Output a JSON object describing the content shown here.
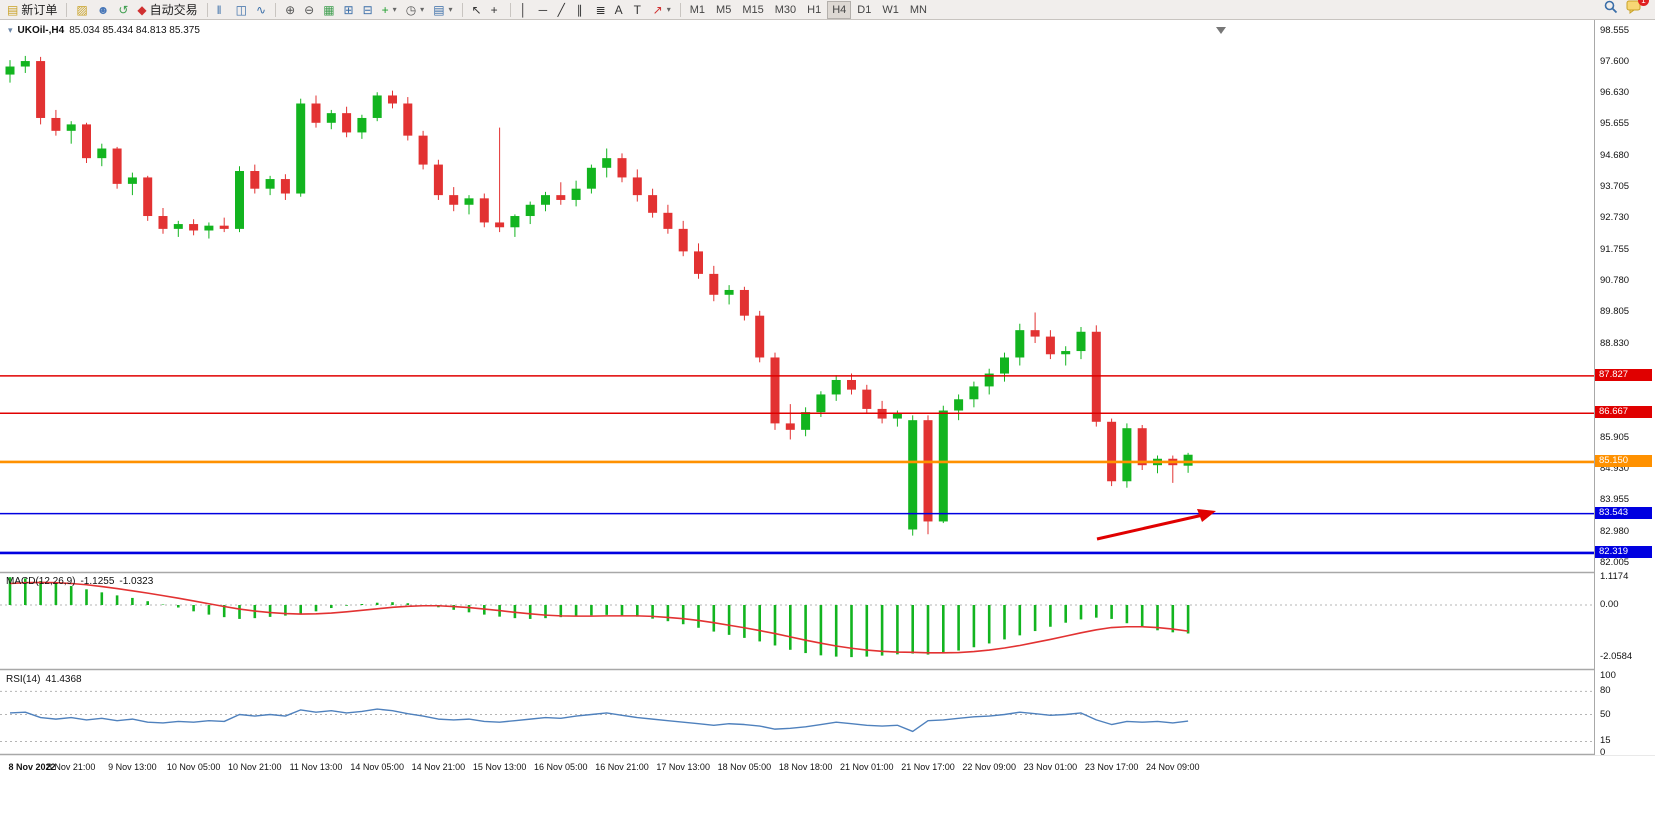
{
  "toolbar": {
    "items": [
      {
        "type": "button",
        "name": "new-order-button",
        "glyph": "▤",
        "glyph_color": "#c9a227",
        "label": "新订单"
      },
      {
        "type": "sep"
      },
      {
        "type": "button",
        "name": "layers-icon-button",
        "glyph": "▨",
        "glyph_color": "#c9a227"
      },
      {
        "type": "button",
        "name": "profile-icon-button",
        "glyph": "☻",
        "glyph_color": "#4a78b8"
      },
      {
        "type": "button",
        "name": "sync-icon-button",
        "glyph": "↺",
        "glyph_color": "#3e9e4e"
      },
      {
        "type": "button",
        "name": "auto-trading-button",
        "glyph": "◆",
        "glyph_color": "#d03030",
        "label": "自动交易"
      },
      {
        "type": "sep"
      },
      {
        "type": "button",
        "name": "bar-chart-button",
        "glyph": "‖",
        "glyph_color": "#3a6ea8"
      },
      {
        "type": "button",
        "name": "candlestick-chart-button",
        "glyph": "◫",
        "glyph_color": "#3a6ea8"
      },
      {
        "type": "button",
        "name": "line-chart-button",
        "glyph": "∿",
        "glyph_color": "#3a6ea8"
      },
      {
        "type": "sep"
      },
      {
        "type": "button",
        "name": "zoom-in-button",
        "glyph": "⊕",
        "glyph_color": "#555555"
      },
      {
        "type": "button",
        "name": "zoom-out-button",
        "glyph": "⊖",
        "glyph_color": "#555555"
      },
      {
        "type": "button",
        "name": "grid-button",
        "glyph": "▦",
        "glyph_color": "#3e9e4e"
      },
      {
        "type": "button",
        "name": "indicators-window-button",
        "glyph": "⊞",
        "glyph_color": "#3a6ea8"
      },
      {
        "type": "button",
        "name": "tile-windows-button",
        "glyph": "⊟",
        "glyph_color": "#3a6ea8"
      },
      {
        "type": "button",
        "name": "add-indicator-button",
        "glyph": "+",
        "glyph_color": "#1d9e2c",
        "caret": true
      },
      {
        "type": "button",
        "name": "periods-button",
        "glyph": "◷",
        "glyph_color": "#555555",
        "caret": true
      },
      {
        "type": "button",
        "name": "templates-button",
        "glyph": "▤",
        "glyph_color": "#3a6ea8",
        "caret": true
      },
      {
        "type": "sep"
      },
      {
        "type": "button",
        "name": "cursor-button",
        "glyph": "↖",
        "glyph_color": "#333333"
      },
      {
        "type": "button",
        "name": "crosshair-button",
        "glyph": "+",
        "glyph_color": "#333333"
      },
      {
        "type": "sep"
      },
      {
        "type": "button",
        "name": "vertical-line-button",
        "glyph": "│",
        "glyph_color": "#333333"
      },
      {
        "type": "button",
        "name": "horizontal-line-button",
        "glyph": "─",
        "glyph_color": "#333333"
      },
      {
        "type": "button",
        "name": "trendline-button",
        "glyph": "╱",
        "glyph_color": "#333333"
      },
      {
        "type": "button",
        "name": "channel-button",
        "glyph": "∥",
        "glyph_color": "#333333"
      },
      {
        "type": "button",
        "name": "fibonacci-button",
        "glyph": "≣",
        "glyph_color": "#333333"
      },
      {
        "type": "button",
        "name": "text-button",
        "glyph": "A",
        "glyph_color": "#333333"
      },
      {
        "type": "button",
        "name": "text-label-button",
        "glyph": "T",
        "glyph_color": "#333333"
      },
      {
        "type": "button",
        "name": "arrows-button",
        "glyph": "↗",
        "glyph_color": "#d03030",
        "caret": true
      },
      {
        "type": "sep"
      }
    ],
    "timeframes": [
      "M1",
      "M5",
      "M15",
      "M30",
      "H1",
      "H4",
      "D1",
      "W1",
      "MN"
    ],
    "active_timeframe": "H4",
    "badge_count": "1"
  },
  "chart": {
    "symbol": "UKOil-,H4",
    "ohlc": "85.034 85.434 84.813 85.375",
    "price_axis_labels": [
      "98.555",
      "97.600",
      "96.630",
      "95.655",
      "94.680",
      "93.705",
      "92.730",
      "91.755",
      "90.780",
      "89.805",
      "88.830",
      "85.905",
      "84.930",
      "83.955",
      "82.980",
      "82.005"
    ]
  },
  "panes": {
    "macd": {
      "title": "MACD(12,26,9)",
      "value1": "-1.1255",
      "value2": "-1.0323"
    },
    "rsi": {
      "title": "RSI(14)",
      "value": "41.4368"
    }
  },
  "colors": {
    "up": "#12b41f",
    "down": "#e23232",
    "macd_hist": "#12b41f",
    "macd_signal": "#e23232",
    "rsi": "#4f81bd",
    "line_red": "#e00000",
    "line_blue": "#0000e0",
    "line_orange": "#ff9100",
    "arrow": "#e00000"
  },
  "chart_data": {
    "type": "candlestick",
    "symbol": "UKOil-",
    "period": "H4",
    "current_ohlc": {
      "open": 85.034,
      "high": 85.434,
      "low": 84.813,
      "close": 85.375
    },
    "y_axis": {
      "min": 82.005,
      "max": 98.555
    },
    "candles": [
      [
        97.2,
        97.65,
        96.95,
        97.45
      ],
      [
        97.45,
        97.78,
        97.25,
        97.62
      ],
      [
        97.62,
        97.75,
        95.65,
        95.85
      ],
      [
        95.85,
        96.1,
        95.3,
        95.45
      ],
      [
        95.45,
        95.75,
        95.05,
        95.65
      ],
      [
        95.65,
        95.7,
        94.45,
        94.6
      ],
      [
        94.6,
        95.05,
        94.35,
        94.9
      ],
      [
        94.9,
        94.95,
        93.65,
        93.8
      ],
      [
        93.8,
        94.15,
        93.45,
        94.0
      ],
      [
        94.0,
        94.05,
        92.65,
        92.8
      ],
      [
        92.8,
        93.05,
        92.25,
        92.4
      ],
      [
        92.4,
        92.65,
        92.15,
        92.55
      ],
      [
        92.55,
        92.7,
        92.2,
        92.35
      ],
      [
        92.35,
        92.6,
        92.1,
        92.5
      ],
      [
        92.5,
        92.75,
        92.3,
        92.4
      ],
      [
        92.4,
        94.35,
        92.3,
        94.2
      ],
      [
        94.2,
        94.4,
        93.5,
        93.65
      ],
      [
        93.65,
        94.05,
        93.45,
        93.95
      ],
      [
        93.95,
        94.1,
        93.3,
        93.5
      ],
      [
        93.5,
        96.45,
        93.4,
        96.3
      ],
      [
        96.3,
        96.55,
        95.55,
        95.7
      ],
      [
        95.7,
        96.1,
        95.5,
        96.0
      ],
      [
        96.0,
        96.2,
        95.25,
        95.4
      ],
      [
        95.4,
        95.95,
        95.2,
        95.85
      ],
      [
        95.85,
        96.65,
        95.75,
        96.55
      ],
      [
        96.55,
        96.7,
        96.15,
        96.3
      ],
      [
        96.3,
        96.5,
        95.15,
        95.3
      ],
      [
        95.3,
        95.45,
        94.25,
        94.4
      ],
      [
        94.4,
        94.55,
        93.3,
        93.45
      ],
      [
        93.45,
        93.7,
        92.95,
        93.15
      ],
      [
        93.15,
        93.45,
        92.85,
        93.35
      ],
      [
        93.35,
        93.5,
        92.45,
        92.6
      ],
      [
        92.6,
        95.55,
        92.3,
        92.45
      ],
      [
        92.45,
        92.85,
        92.15,
        92.8
      ],
      [
        92.8,
        93.25,
        92.55,
        93.15
      ],
      [
        93.15,
        93.55,
        92.95,
        93.45
      ],
      [
        93.45,
        93.85,
        93.15,
        93.3
      ],
      [
        93.3,
        93.9,
        93.1,
        93.65
      ],
      [
        93.65,
        94.4,
        93.5,
        94.3
      ],
      [
        94.3,
        94.9,
        94.0,
        94.6
      ],
      [
        94.6,
        94.75,
        93.85,
        94.0
      ],
      [
        94.0,
        94.25,
        93.25,
        93.45
      ],
      [
        93.45,
        93.65,
        92.75,
        92.9
      ],
      [
        92.9,
        93.15,
        92.25,
        92.4
      ],
      [
        92.4,
        92.65,
        91.55,
        91.7
      ],
      [
        91.7,
        91.95,
        90.85,
        91.0
      ],
      [
        91.0,
        91.25,
        90.15,
        90.35
      ],
      [
        90.35,
        90.65,
        90.05,
        90.5
      ],
      [
        90.5,
        90.6,
        89.55,
        89.7
      ],
      [
        89.7,
        89.85,
        88.25,
        88.4
      ],
      [
        88.4,
        88.55,
        86.15,
        86.35
      ],
      [
        86.35,
        86.95,
        85.85,
        86.15
      ],
      [
        86.15,
        86.85,
        85.95,
        86.7
      ],
      [
        86.7,
        87.35,
        86.55,
        87.25
      ],
      [
        87.25,
        87.85,
        87.05,
        87.7
      ],
      [
        87.7,
        87.9,
        87.25,
        87.4
      ],
      [
        87.4,
        87.55,
        86.65,
        86.8
      ],
      [
        86.8,
        87.05,
        86.35,
        86.5
      ],
      [
        86.5,
        86.75,
        86.25,
        86.65
      ],
      [
        83.05,
        86.6,
        82.86,
        86.45
      ],
      [
        86.45,
        86.6,
        82.9,
        83.3
      ],
      [
        83.3,
        86.9,
        83.25,
        86.75
      ],
      [
        86.75,
        87.25,
        86.45,
        87.1
      ],
      [
        87.1,
        87.65,
        86.85,
        87.5
      ],
      [
        87.5,
        88.05,
        87.25,
        87.9
      ],
      [
        87.9,
        88.55,
        87.65,
        88.4
      ],
      [
        88.4,
        89.45,
        88.15,
        89.25
      ],
      [
        89.25,
        89.8,
        88.85,
        89.05
      ],
      [
        89.05,
        89.25,
        88.35,
        88.5
      ],
      [
        88.5,
        88.75,
        88.15,
        88.6
      ],
      [
        88.6,
        89.35,
        88.35,
        89.2
      ],
      [
        89.2,
        89.4,
        86.25,
        86.4
      ],
      [
        86.4,
        86.5,
        84.4,
        84.55
      ],
      [
        84.55,
        86.35,
        84.35,
        86.2
      ],
      [
        86.2,
        86.3,
        84.9,
        85.05
      ],
      [
        85.05,
        85.35,
        84.8,
        85.25
      ],
      [
        85.25,
        85.35,
        84.5,
        85.05
      ],
      [
        85.034,
        85.434,
        84.813,
        85.375
      ]
    ],
    "horizontal_lines": [
      {
        "value": 87.827,
        "label": "87.827",
        "color": "#e00000",
        "width": 1.5
      },
      {
        "value": 86.667,
        "label": "86.667",
        "color": "#e00000",
        "width": 1.5
      },
      {
        "value": 85.15,
        "label": "85.150",
        "color": "#ff9100",
        "width": 2.6
      },
      {
        "value": 83.543,
        "label": "83.543",
        "color": "#0000e0",
        "width": 1.6
      },
      {
        "value": 82.319,
        "label": "82.319",
        "color": "#0000e0",
        "width": 2.6
      }
    ],
    "time_labels": [
      {
        "text": "8 Nov 2022",
        "bar": 1
      },
      {
        "text": "8 Nov 21:00",
        "bar": 5
      },
      {
        "text": "9 Nov 13:00",
        "bar": 9
      },
      {
        "text": "10 Nov 05:00",
        "bar": 13
      },
      {
        "text": "10 Nov 21:00",
        "bar": 17
      },
      {
        "text": "11 Nov 13:00",
        "bar": 21
      },
      {
        "text": "14 Nov 05:00",
        "bar": 25
      },
      {
        "text": "14 Nov 21:00",
        "bar": 29
      },
      {
        "text": "15 Nov 13:00",
        "bar": 33
      },
      {
        "text": "16 Nov 05:00",
        "bar": 37
      },
      {
        "text": "16 Nov 21:00",
        "bar": 41
      },
      {
        "text": "17 Nov 13:00",
        "bar": 45
      },
      {
        "text": "18 Nov 05:00",
        "bar": 49
      },
      {
        "text": "18 Nov 18:00",
        "bar": 53
      },
      {
        "text": "21 Nov 01:00",
        "bar": 57
      },
      {
        "text": "21 Nov 17:00",
        "bar": 61
      },
      {
        "text": "22 Nov 09:00",
        "bar": 65
      },
      {
        "text": "23 Nov 01:00",
        "bar": 69
      },
      {
        "text": "23 Nov 17:00",
        "bar": 73
      },
      {
        "text": "24 Nov 09:00",
        "bar": 77
      }
    ],
    "indicators": {
      "macd": {
        "params": "12,26,9",
        "axis_labels": [
          "1.1174",
          "0.00",
          "-2.0584"
        ],
        "current_macd": -1.1255,
        "current_signal": -1.0323,
        "histogram": [
          1.1,
          1.05,
          0.95,
          0.85,
          0.75,
          0.62,
          0.5,
          0.38,
          0.28,
          0.15,
          0.02,
          -0.1,
          -0.25,
          -0.38,
          -0.48,
          -0.55,
          -0.52,
          -0.47,
          -0.42,
          -0.35,
          -0.25,
          -0.12,
          -0.03,
          0.04,
          0.09,
          0.11,
          0.07,
          0.0,
          -0.09,
          -0.19,
          -0.29,
          -0.38,
          -0.46,
          -0.52,
          -0.55,
          -0.52,
          -0.48,
          -0.44,
          -0.41,
          -0.39,
          -0.41,
          -0.46,
          -0.54,
          -0.64,
          -0.76,
          -0.9,
          -1.05,
          -1.18,
          -1.3,
          -1.44,
          -1.6,
          -1.77,
          -1.9,
          -1.99,
          -2.04,
          -2.06,
          -2.04,
          -2.0,
          -1.95,
          -1.92,
          -1.96,
          -1.9,
          -1.8,
          -1.67,
          -1.52,
          -1.36,
          -1.2,
          -1.03,
          -0.86,
          -0.7,
          -0.57,
          -0.5,
          -0.55,
          -0.72,
          -0.88,
          -1.0,
          -1.08,
          -1.1255
        ],
        "signal": [
          0.85,
          0.88,
          0.89,
          0.88,
          0.85,
          0.8,
          0.73,
          0.65,
          0.56,
          0.47,
          0.37,
          0.27,
          0.16,
          0.05,
          -0.06,
          -0.16,
          -0.24,
          -0.3,
          -0.34,
          -0.36,
          -0.35,
          -0.32,
          -0.27,
          -0.21,
          -0.15,
          -0.09,
          -0.05,
          -0.03,
          -0.03,
          -0.06,
          -0.1,
          -0.16,
          -0.22,
          -0.29,
          -0.35,
          -0.4,
          -0.43,
          -0.44,
          -0.44,
          -0.43,
          -0.43,
          -0.43,
          -0.45,
          -0.49,
          -0.54,
          -0.61,
          -0.7,
          -0.8,
          -0.9,
          -1.01,
          -1.13,
          -1.26,
          -1.39,
          -1.51,
          -1.62,
          -1.71,
          -1.78,
          -1.83,
          -1.86,
          -1.87,
          -1.89,
          -1.89,
          -1.88,
          -1.84,
          -1.78,
          -1.7,
          -1.6,
          -1.48,
          -1.36,
          -1.23,
          -1.1,
          -0.98,
          -0.89,
          -0.86,
          -0.86,
          -0.89,
          -0.95,
          -1.0323
        ]
      },
      "rsi": {
        "period": 14,
        "current": 41.4368,
        "levels": [
          80,
          50,
          15
        ],
        "axis_labels": [
          "100",
          "80",
          "50",
          "15",
          "0"
        ],
        "values": [
          52,
          53,
          46,
          44,
          46,
          43,
          45,
          42,
          44,
          40,
          39,
          41,
          40,
          42,
          41,
          50,
          48,
          50,
          48,
          56,
          53,
          55,
          52,
          54,
          57,
          55,
          51,
          48,
          44,
          43,
          44,
          41,
          40,
          42,
          44,
          46,
          45,
          48,
          50,
          52,
          49,
          46,
          44,
          42,
          40,
          38,
          36,
          38,
          37,
          35,
          31,
          32,
          34,
          37,
          40,
          38,
          36,
          35,
          36,
          28,
          42,
          43,
          45,
          47,
          48,
          50,
          53,
          51,
          49,
          50,
          52,
          43,
          37,
          41,
          40,
          41,
          39,
          41.4368
        ]
      }
    }
  }
}
